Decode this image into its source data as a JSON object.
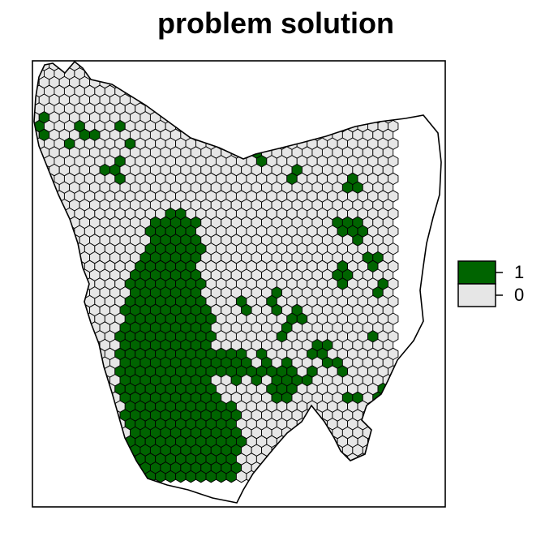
{
  "title": "problem solution",
  "colors": {
    "selected": "#006400",
    "unselected": "#e6e6e6",
    "outline": "#000000",
    "background": "#ffffff"
  },
  "legend": {
    "placement": "right",
    "entries": [
      {
        "label": "1",
        "color": "#006400"
      },
      {
        "label": "0",
        "color": "#e6e6e6"
      }
    ]
  },
  "chart_data": {
    "type": "hex-grid-map",
    "region": "Tasmania",
    "values": [
      "0",
      "1"
    ]
  }
}
